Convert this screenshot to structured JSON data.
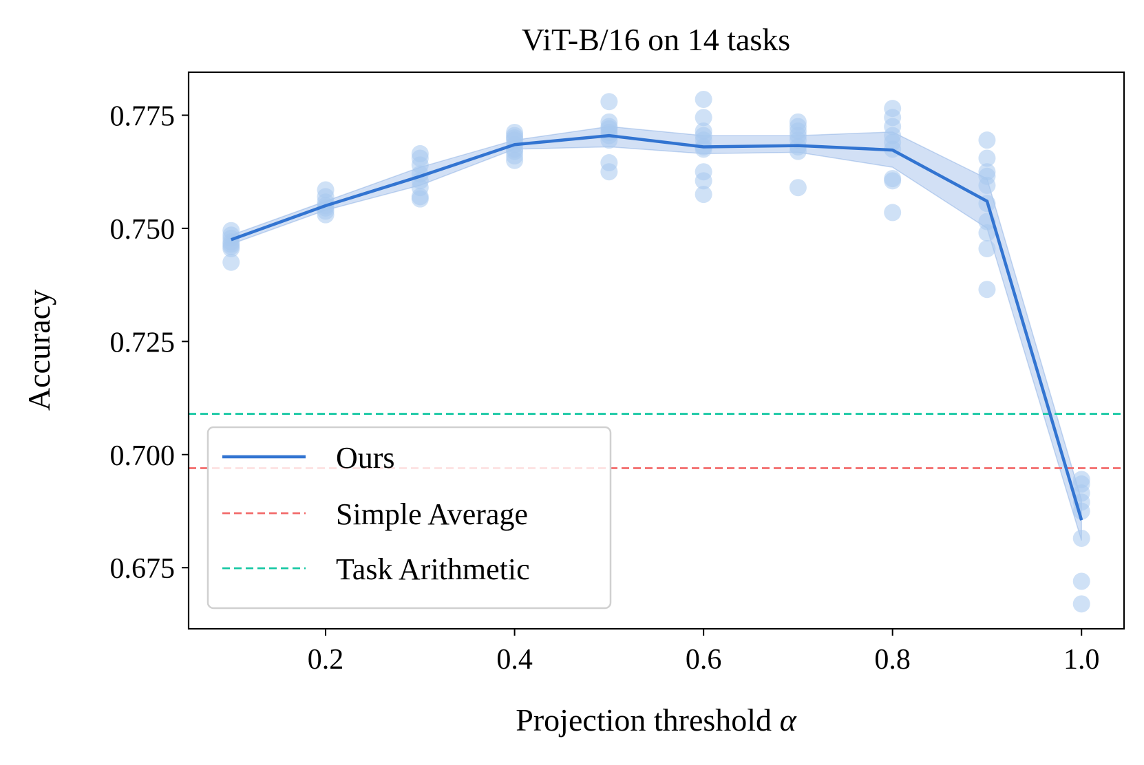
{
  "chart_data": {
    "type": "line",
    "title": "ViT-B/16 on 14 tasks",
    "xlabel": "Projection threshold",
    "xlabel_symbol": "α",
    "ylabel": "Accuracy",
    "xlim": [
      0.055,
      1.045
    ],
    "ylim": [
      0.6615,
      0.7845
    ],
    "xticks": [
      0.2,
      0.4,
      0.6,
      0.8,
      1.0
    ],
    "xtick_labels": [
      "0.2",
      "0.4",
      "0.6",
      "0.8",
      "1.0"
    ],
    "yticks": [
      0.675,
      0.7,
      0.725,
      0.75,
      0.775
    ],
    "ytick_labels": [
      "0.675",
      "0.700",
      "0.725",
      "0.750",
      "0.775"
    ],
    "legend_position": "lower-left",
    "series": [
      {
        "name": "Ours",
        "style": "solid",
        "color": "#3274D1",
        "x": [
          0.1,
          0.2,
          0.3,
          0.4,
          0.5,
          0.6,
          0.7,
          0.8,
          0.9,
          1.0
        ],
        "y": [
          0.7475,
          0.755,
          0.7615,
          0.7685,
          0.7705,
          0.768,
          0.7683,
          0.7673,
          0.756,
          0.6855
        ],
        "band_lower": [
          0.7465,
          0.754,
          0.7595,
          0.7675,
          0.768,
          0.7665,
          0.7668,
          0.7635,
          0.75,
          0.681
        ],
        "band_upper": [
          0.7485,
          0.756,
          0.7635,
          0.7695,
          0.7725,
          0.7705,
          0.7705,
          0.7713,
          0.761,
          0.69
        ]
      },
      {
        "name": "Simple Average",
        "style": "dashed",
        "color": "#F26B6B",
        "y_constant": 0.697
      },
      {
        "name": "Task Arithmetic",
        "style": "dashed",
        "color": "#1BC9A5",
        "y_constant": 0.709
      }
    ],
    "scatter": {
      "color": "#A8C8EE",
      "points": [
        {
          "x": 0.1,
          "y": [
            0.7495,
            0.7485,
            0.7478,
            0.747,
            0.7465,
            0.746,
            0.7455,
            0.7425
          ]
        },
        {
          "x": 0.2,
          "y": [
            0.7585,
            0.757,
            0.7558,
            0.755,
            0.7545,
            0.7538,
            0.753
          ]
        },
        {
          "x": 0.3,
          "y": [
            0.7665,
            0.7655,
            0.764,
            0.762,
            0.7605,
            0.759,
            0.757,
            0.7565
          ]
        },
        {
          "x": 0.4,
          "y": [
            0.7712,
            0.7705,
            0.77,
            0.7695,
            0.7685,
            0.7675,
            0.767,
            0.766,
            0.765
          ]
        },
        {
          "x": 0.5,
          "y": [
            0.778,
            0.7735,
            0.7725,
            0.772,
            0.7712,
            0.7705,
            0.7695,
            0.7645,
            0.7625
          ]
        },
        {
          "x": 0.6,
          "y": [
            0.7785,
            0.7745,
            0.7715,
            0.7705,
            0.7695,
            0.768,
            0.7675,
            0.7625,
            0.7605,
            0.7575
          ]
        },
        {
          "x": 0.7,
          "y": [
            0.7735,
            0.7725,
            0.7715,
            0.7705,
            0.7695,
            0.768,
            0.767,
            0.759
          ]
        },
        {
          "x": 0.8,
          "y": [
            0.7765,
            0.7745,
            0.7725,
            0.7705,
            0.769,
            0.7675,
            0.761,
            0.7605,
            0.7535
          ]
        },
        {
          "x": 0.9,
          "y": [
            0.7695,
            0.7655,
            0.7625,
            0.7615,
            0.7595,
            0.7555,
            0.7515,
            0.749,
            0.7455,
            0.7365
          ]
        },
        {
          "x": 1.0,
          "y": [
            0.6945,
            0.6935,
            0.6915,
            0.6895,
            0.6875,
            0.6815,
            0.672,
            0.667
          ]
        }
      ]
    }
  }
}
